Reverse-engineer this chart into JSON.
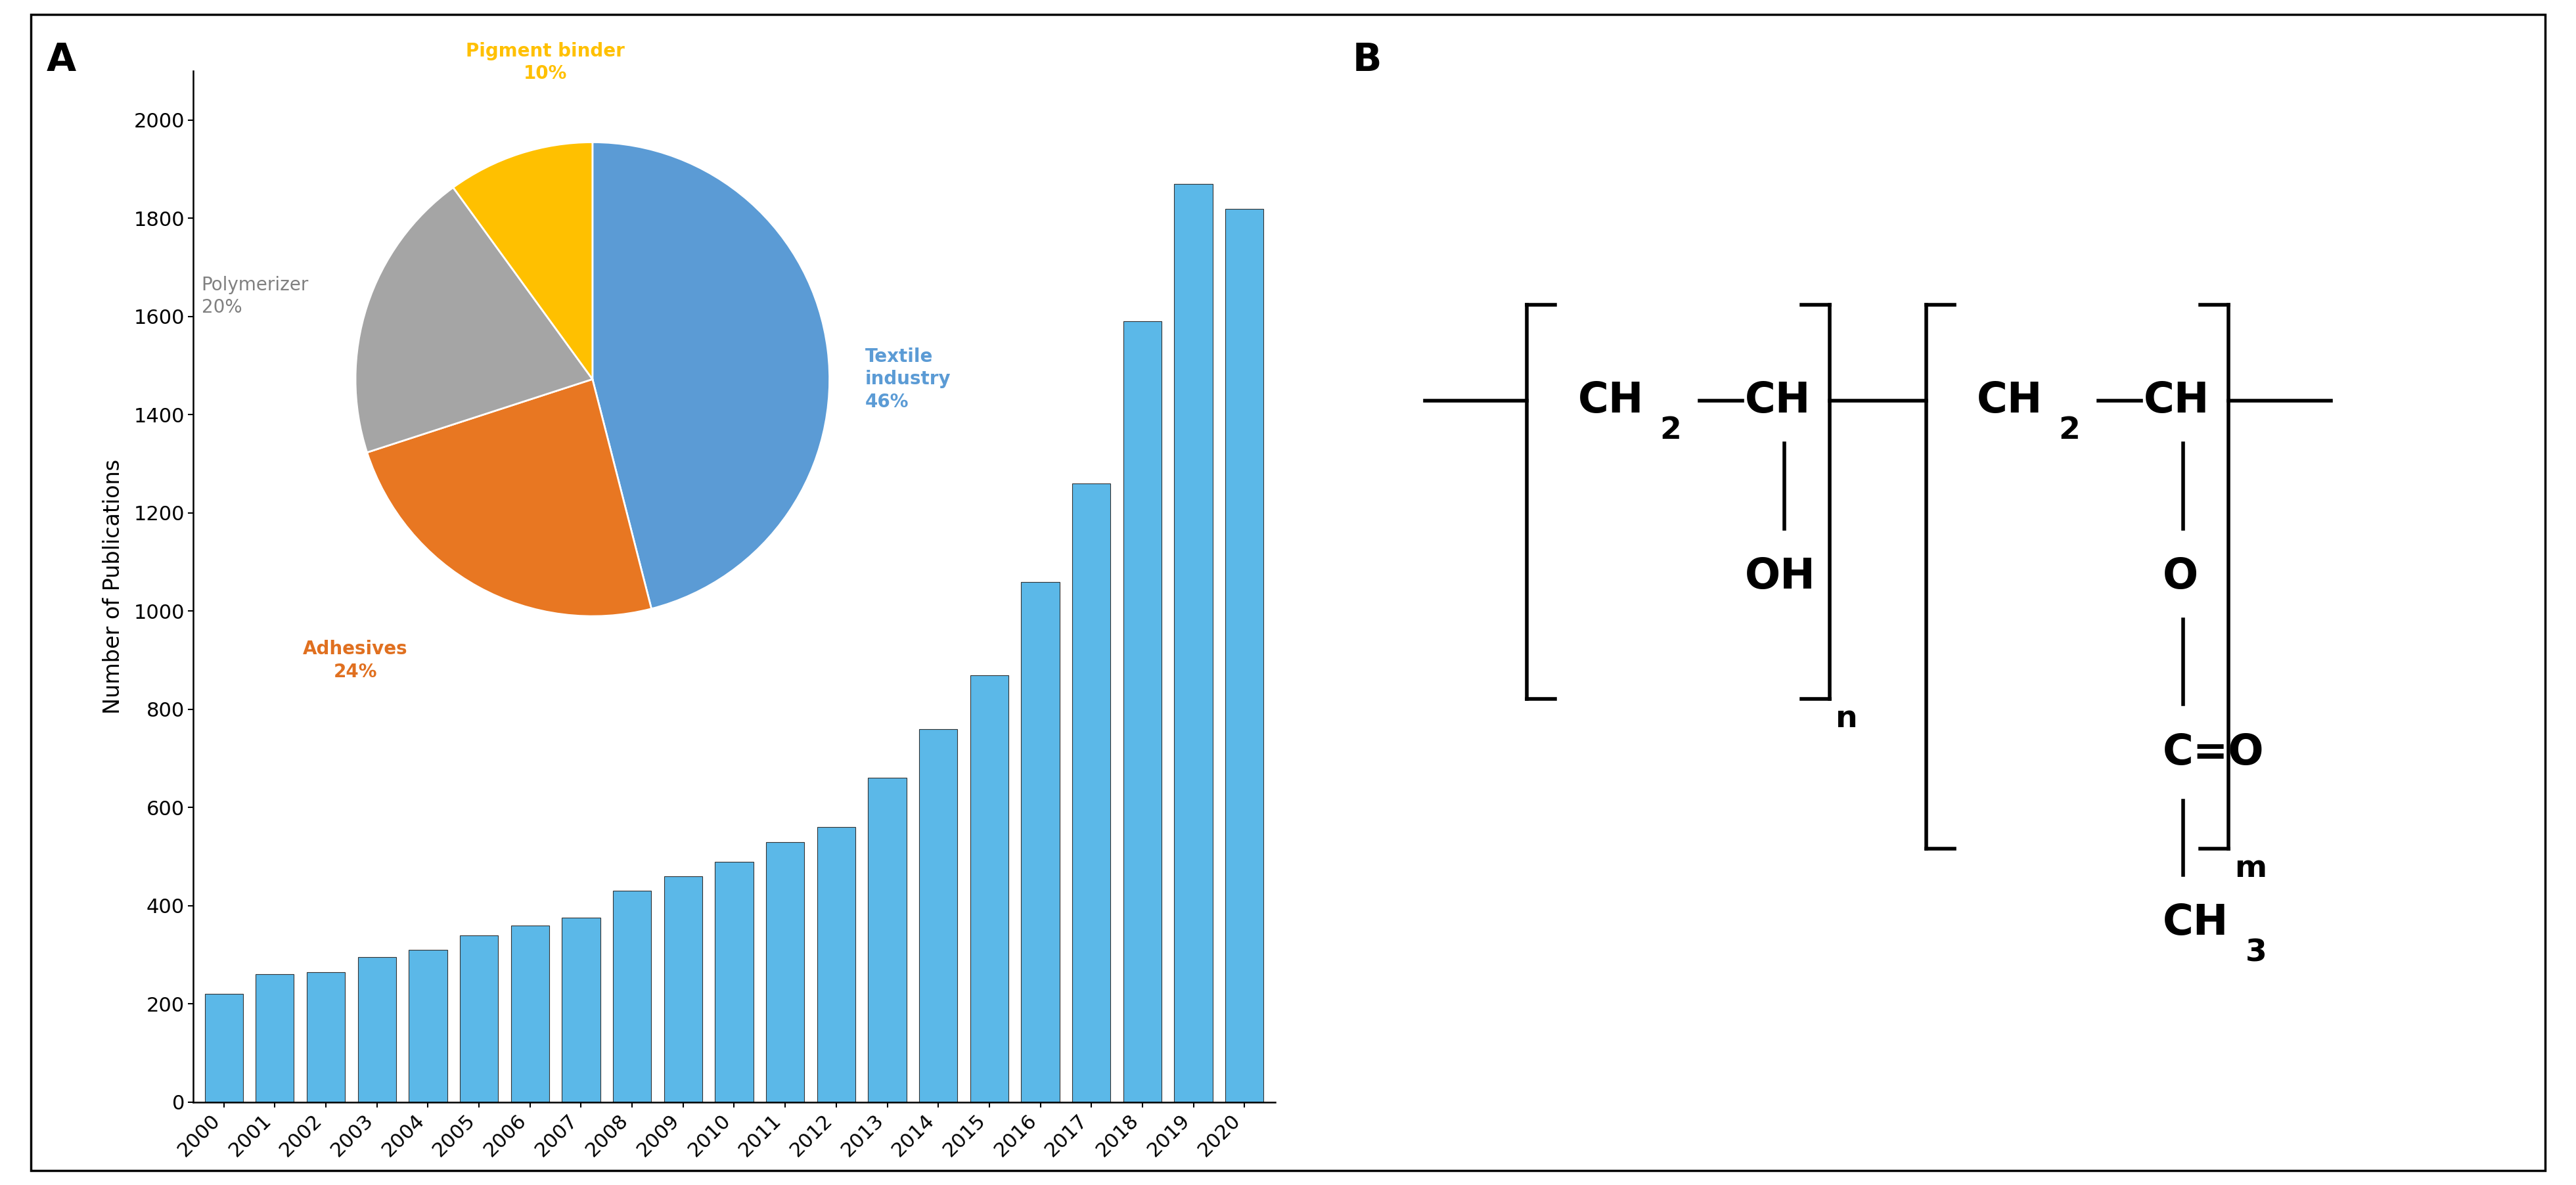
{
  "bar_years": [
    2000,
    2001,
    2002,
    2003,
    2004,
    2005,
    2006,
    2007,
    2008,
    2009,
    2010,
    2011,
    2012,
    2013,
    2014,
    2015,
    2016,
    2017,
    2018,
    2019,
    2020
  ],
  "bar_values": [
    220,
    260,
    265,
    295,
    310,
    340,
    360,
    375,
    430,
    460,
    490,
    530,
    560,
    660,
    760,
    870,
    1060,
    1260,
    1590,
    1870,
    1820
  ],
  "bar_color": "#5BB8E8",
  "bar_edge_color": "#333333",
  "ylabel": "Number of Publications",
  "ylim": [
    0,
    2100
  ],
  "yticks": [
    0,
    200,
    400,
    600,
    800,
    1000,
    1200,
    1400,
    1600,
    1800,
    2000
  ],
  "pie_values": [
    46,
    24,
    20,
    10
  ],
  "pie_colors": [
    "#5B9BD5",
    "#E87722",
    "#A5A5A5",
    "#FFC000"
  ],
  "pie_label_colors": [
    "#5B9BD5",
    "#E07020",
    "#808080",
    "#FFC000"
  ],
  "panel_a_label": "A",
  "panel_b_label": "B",
  "background_color": "#ffffff"
}
